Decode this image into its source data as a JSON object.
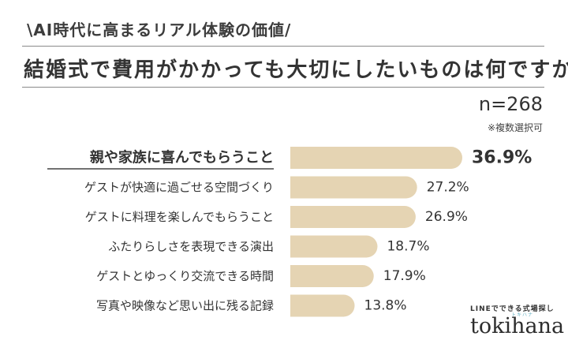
{
  "header": {
    "subtitle": "\\AI時代に高まるリアル体験の価値/",
    "title": "結婚式で費用がかかっても大切にしたいものは何ですか？",
    "n_label": "n=268",
    "note": "※複数選択可"
  },
  "brand": {
    "tagline": "LINEでできる式場探し",
    "sub": "トキハナ",
    "logo": "tokihana"
  },
  "colors": {
    "bar": "#e5d4b3",
    "text": "#333333"
  },
  "chart_data": {
    "type": "bar",
    "orientation": "horizontal",
    "categories": [
      "親や家族に喜んでもらうこと",
      "ゲストが快適に過ごせる空間づくり",
      "ゲストに料理を楽しんでもらうこと",
      "ふたりらしさを表現できる演出",
      "ゲストとゆっくり交流できる時間",
      "写真や映像など思い出に残る記録"
    ],
    "values": [
      36.9,
      27.2,
      26.9,
      18.7,
      17.9,
      13.8
    ],
    "value_labels": [
      "36.9%",
      "27.2%",
      "26.9%",
      "18.7%",
      "17.9%",
      "13.8%"
    ],
    "unit": "%",
    "highlight_index": 0,
    "xlim": [
      0,
      36.9
    ]
  }
}
